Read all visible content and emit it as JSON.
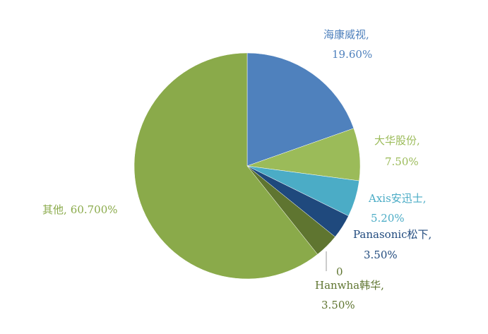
{
  "chart_data": {
    "type": "pie",
    "categories": [
      "海康威视,",
      "大华股份,",
      "Axis安迅士,",
      "Panasonic松下,",
      "Hanwha韩华,",
      "其他,"
    ],
    "values": [
      19.6,
      7.5,
      5.2,
      3.5,
      3.5,
      60.7
    ],
    "value_labels": [
      "19.60%",
      "7.50%",
      "5.20%",
      "3.50%",
      "3.50%",
      "60.700%"
    ],
    "colors": [
      "#4f81bd",
      "#9bbb59",
      "#4bacc6",
      "#1f497d",
      "#5f7530",
      "#8aaa4a"
    ],
    "annotation": "0"
  }
}
